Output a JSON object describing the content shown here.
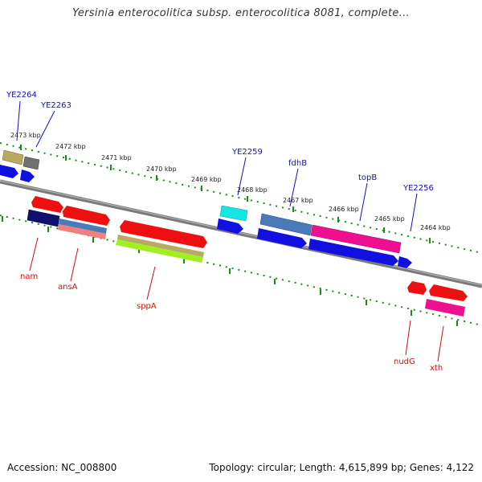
{
  "title": "Yersinia enterocolitica subsp. enterocolitica 8081, complete...",
  "accession": "Accession: NC_008800",
  "topology": "Topology: circular; Length: 4,615,899 bp; Genes: 4,122",
  "colors": {
    "backbone": "#888888",
    "tick": "#1a8a1a",
    "label_top": "#1010c0",
    "label_bottom": "#d01010"
  },
  "scale_labels": [
    "2473 kbp",
    "2472 kbp",
    "2471 kbp",
    "2470 kbp",
    "2469 kbp",
    "2468 kbp",
    "2467 kbp",
    "2466 kbp",
    "2465 kbp",
    "2464 kbp"
  ],
  "top_labels": [
    "YE2264",
    "YE2263",
    "YE2259",
    "fdhB",
    "topB",
    "YE2256"
  ],
  "bottom_labels": [
    "nam",
    "ansA",
    "sppA",
    "nudG",
    "xth"
  ]
}
